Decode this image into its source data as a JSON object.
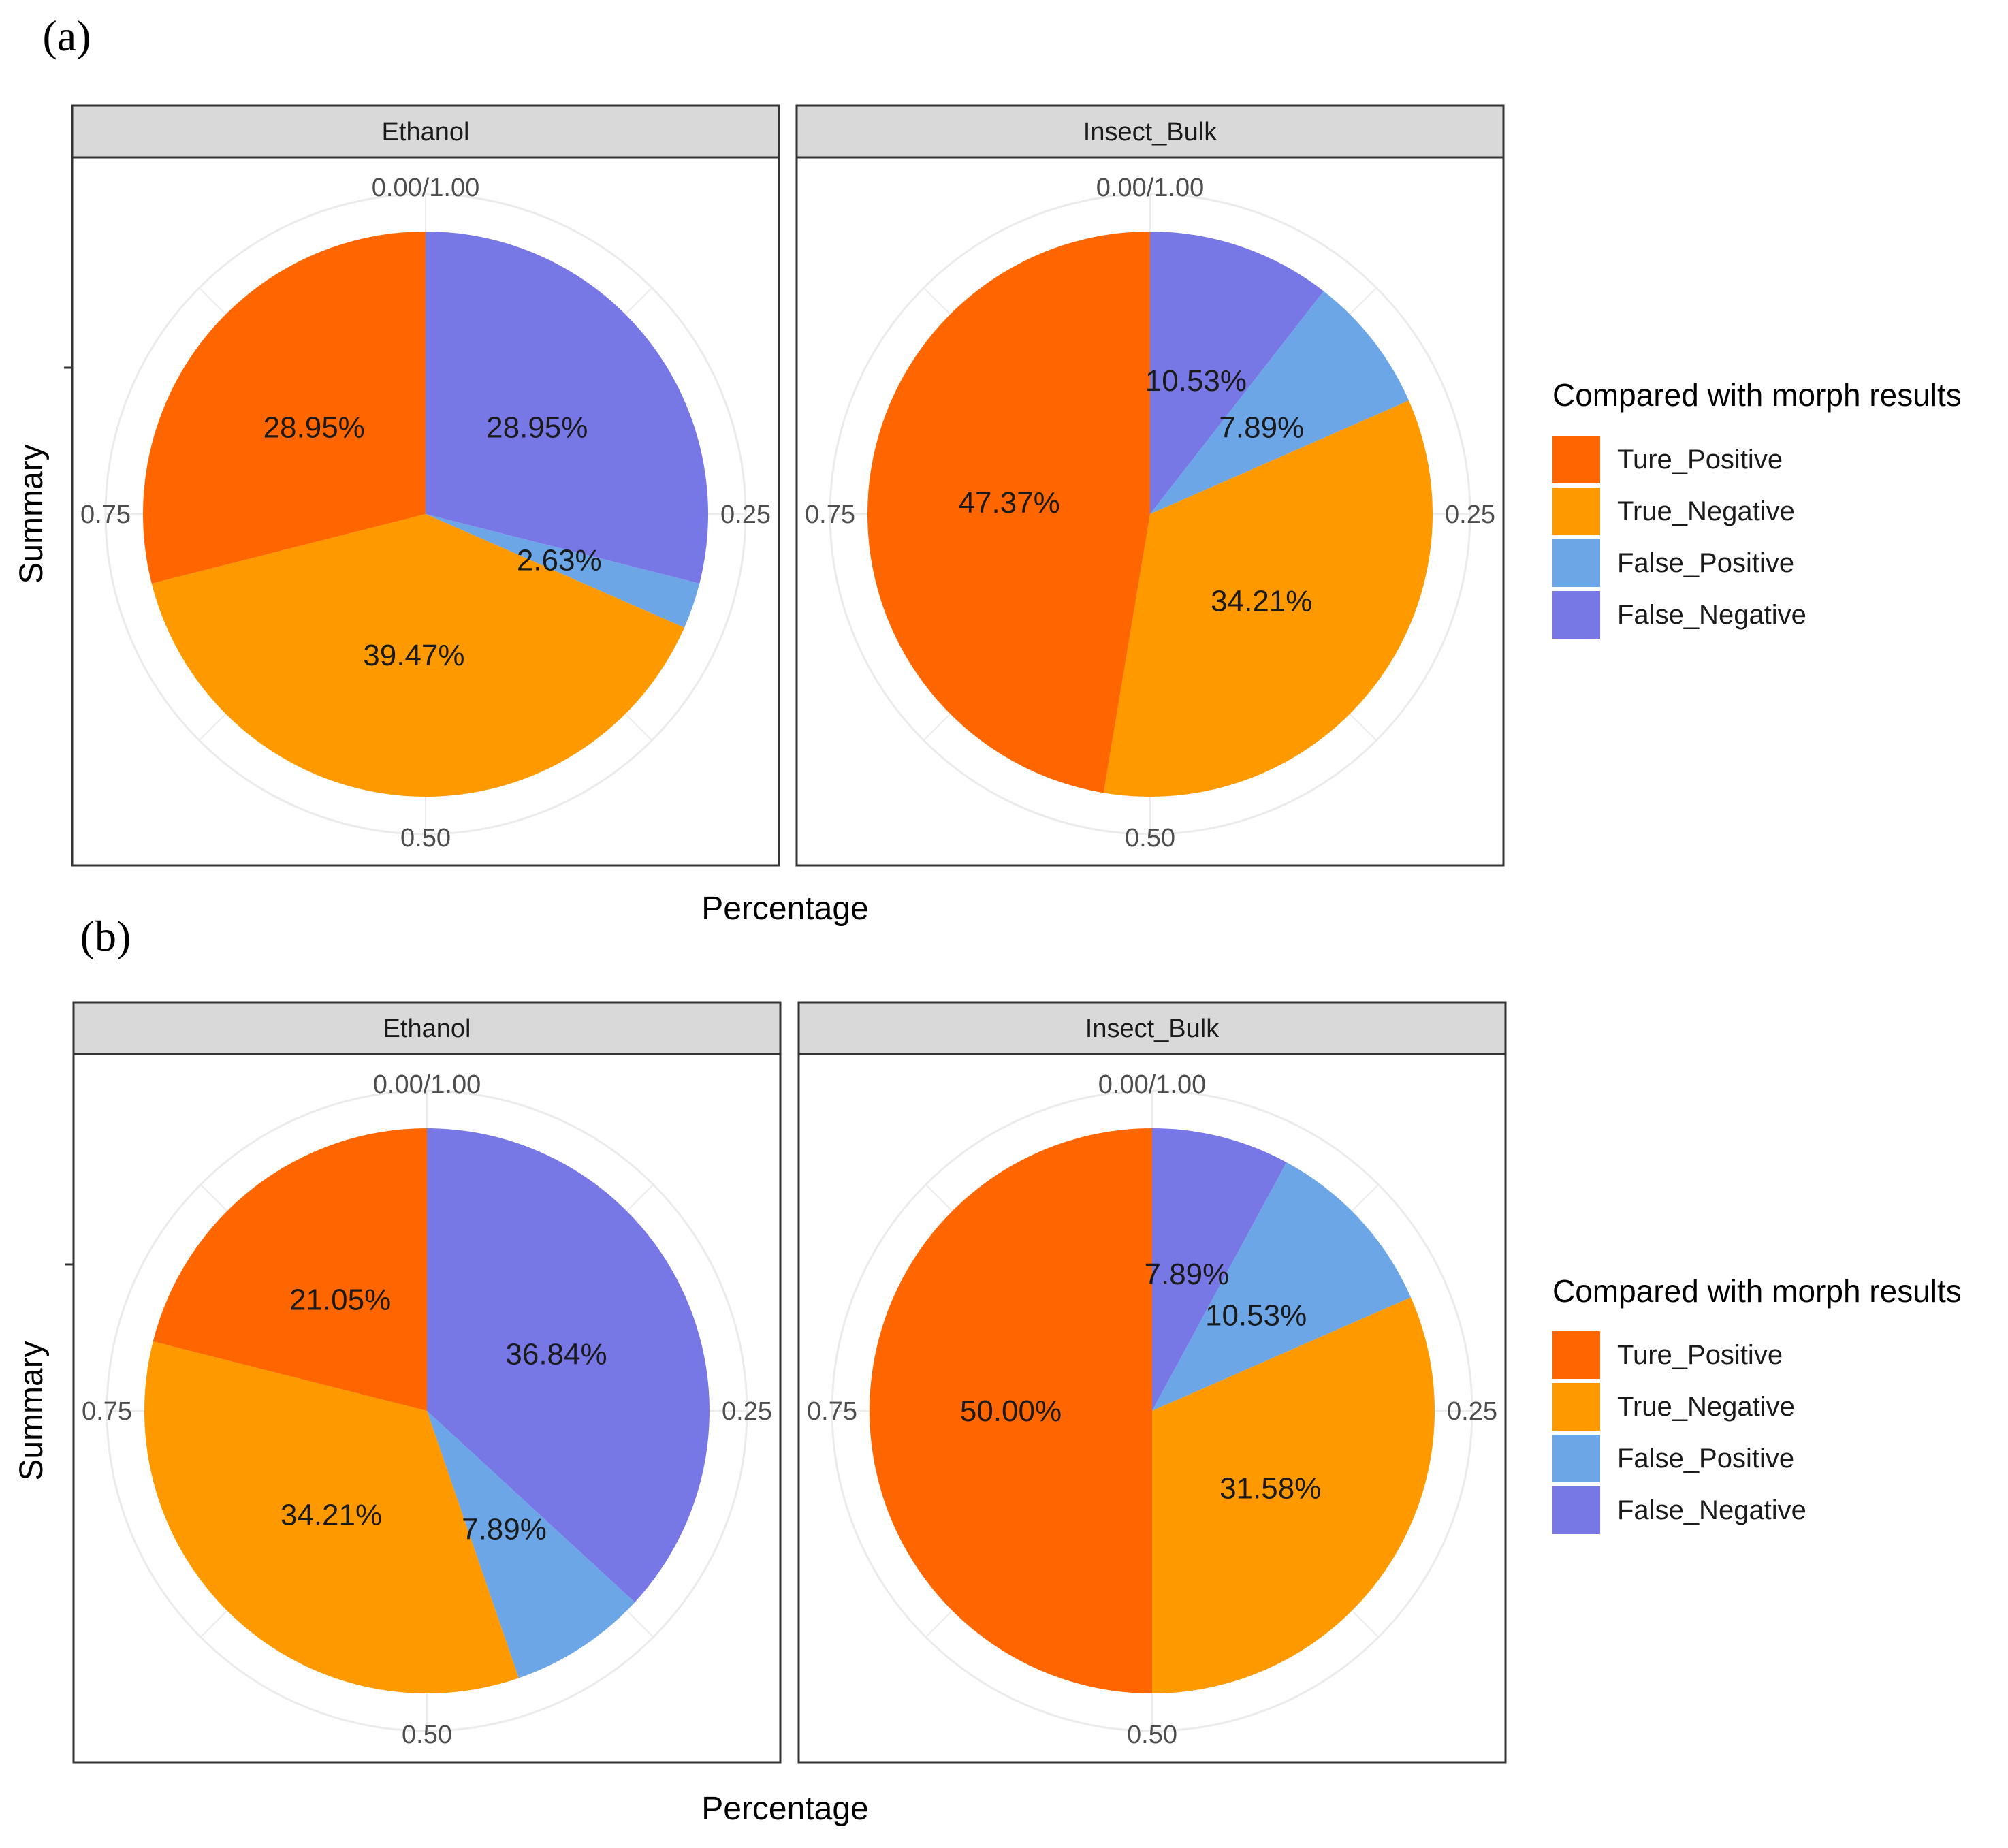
{
  "colors": {
    "Ture_Positive": "#FF6600",
    "True_Negative": "#FF9900",
    "False_Positive": "#6CA6E6",
    "False_Negative": "#7777E5",
    "strip_bg": "#d9d9d9",
    "grid": "#ebebeb",
    "tick_text": "#4d4d4d"
  },
  "chart_data": [
    {
      "type": "pie",
      "tag": "(a)",
      "xlabel": "Percentage",
      "ylabel": "Summary",
      "angle_ticks": [
        "0.00/1.00",
        "0.25",
        "0.50",
        "0.75"
      ],
      "legend": {
        "title": "Compared with morph results",
        "items": [
          "Ture_Positive",
          "True_Negative",
          "False_Positive",
          "False_Negative"
        ]
      },
      "facets": [
        {
          "title": "Ethanol",
          "slices": [
            {
              "name": "False_Negative",
              "value": 28.95,
              "label": "28.95%"
            },
            {
              "name": "False_Positive",
              "value": 2.63,
              "label": "2.63%"
            },
            {
              "name": "True_Negative",
              "value": 39.47,
              "label": "39.47%"
            },
            {
              "name": "Ture_Positive",
              "value": 28.95,
              "label": "28.95%"
            }
          ]
        },
        {
          "title": "Insect_Bulk",
          "slices": [
            {
              "name": "False_Negative",
              "value": 10.53,
              "label": "10.53%"
            },
            {
              "name": "False_Positive",
              "value": 7.89,
              "label": "7.89%"
            },
            {
              "name": "True_Negative",
              "value": 34.21,
              "label": "34.21%"
            },
            {
              "name": "Ture_Positive",
              "value": 47.37,
              "label": "47.37%"
            }
          ]
        }
      ]
    },
    {
      "type": "pie",
      "tag": "(b)",
      "xlabel": "Percentage",
      "ylabel": "Summary",
      "angle_ticks": [
        "0.00/1.00",
        "0.25",
        "0.50",
        "0.75"
      ],
      "legend": {
        "title": "Compared with morph results",
        "items": [
          "Ture_Positive",
          "True_Negative",
          "False_Positive",
          "False_Negative"
        ]
      },
      "facets": [
        {
          "title": "Ethanol",
          "slices": [
            {
              "name": "False_Negative",
              "value": 36.84,
              "label": "36.84%"
            },
            {
              "name": "False_Positive",
              "value": 7.89,
              "label": "7.89%"
            },
            {
              "name": "True_Negative",
              "value": 34.21,
              "label": "34.21%"
            },
            {
              "name": "Ture_Positive",
              "value": 21.05,
              "label": "21.05%"
            }
          ]
        },
        {
          "title": "Insect_Bulk",
          "slices": [
            {
              "name": "False_Negative",
              "value": 7.89,
              "label": "7.89%"
            },
            {
              "name": "False_Positive",
              "value": 10.53,
              "label": "10.53%"
            },
            {
              "name": "True_Negative",
              "value": 31.58,
              "label": "31.58%"
            },
            {
              "name": "Ture_Positive",
              "value": 50.0,
              "label": "50.00%"
            }
          ]
        }
      ]
    }
  ]
}
